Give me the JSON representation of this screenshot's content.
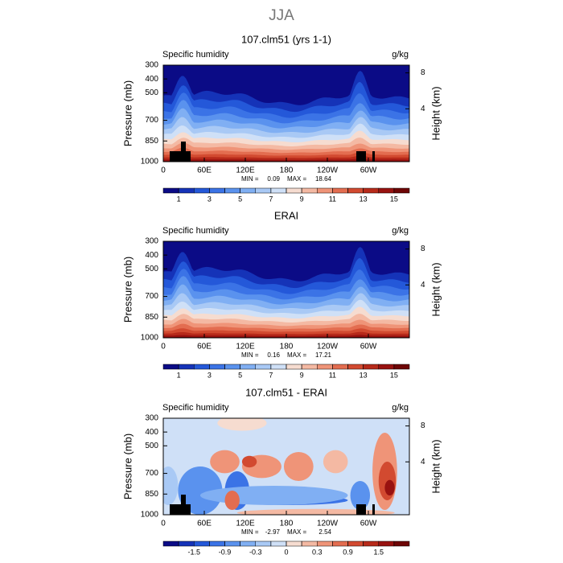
{
  "suptitle": "JJA",
  "chart_data": [
    {
      "type": "contour",
      "title": "107.clm51 (yrs 1-1)",
      "left_label": "Specific humidity",
      "right_label": "g/kg",
      "ylabel": "Pressure (mb)",
      "y2label": "Height (km)",
      "xlim": [
        0,
        360
      ],
      "xticks": [
        0,
        {
          "value": 60,
          "label": "60E"
        },
        {
          "value": 120,
          "label": "120E"
        },
        180,
        {
          "value": 240,
          "label": "120W"
        },
        {
          "value": 300,
          "label": "60W"
        }
      ],
      "ylim": [
        1000,
        300
      ],
      "yticks": [
        300,
        400,
        500,
        700,
        850,
        1000
      ],
      "y2_scale": "standard-atmosphere",
      "y2ticks": [
        8,
        4
      ],
      "min_label": "MIN =",
      "min": 0.09,
      "max_label": "MAX =",
      "max": 18.64,
      "levels": [
        1,
        2,
        3,
        4,
        5,
        6,
        7,
        8,
        9,
        10,
        11,
        12,
        13,
        14,
        15
      ],
      "colorbar_ticks": [
        1,
        3,
        5,
        7,
        9,
        11,
        13,
        15
      ],
      "colors": [
        "#0b0b86",
        "#1533b8",
        "#2458d9",
        "#3b73e6",
        "#5a92ee",
        "#80aff3",
        "#a9c9f5",
        "#cfe0f7",
        "#f6dcd0",
        "#f4b9a3",
        "#ef9478",
        "#e36d50",
        "#d24a30",
        "#b72a1a",
        "#981210",
        "#6e0606"
      ]
    },
    {
      "type": "contour",
      "title": "ERAI",
      "left_label": "Specific humidity",
      "right_label": "g/kg",
      "ylabel": "Pressure (mb)",
      "y2label": "Height (km)",
      "xlim": [
        0,
        360
      ],
      "xticks": [
        0,
        {
          "value": 60,
          "label": "60E"
        },
        {
          "value": 120,
          "label": "120E"
        },
        180,
        {
          "value": 240,
          "label": "120W"
        },
        {
          "value": 300,
          "label": "60W"
        }
      ],
      "ylim": [
        1000,
        300
      ],
      "yticks": [
        300,
        400,
        500,
        700,
        850,
        1000
      ],
      "y2_scale": "standard-atmosphere",
      "y2ticks": [
        8,
        4
      ],
      "min_label": "MIN =",
      "min": 0.16,
      "max_label": "MAX =",
      "max": 17.21,
      "levels": [
        1,
        2,
        3,
        4,
        5,
        6,
        7,
        8,
        9,
        10,
        11,
        12,
        13,
        14,
        15
      ],
      "colorbar_ticks": [
        1,
        3,
        5,
        7,
        9,
        11,
        13,
        15
      ],
      "colors": [
        "#0b0b86",
        "#1533b8",
        "#2458d9",
        "#3b73e6",
        "#5a92ee",
        "#80aff3",
        "#a9c9f5",
        "#cfe0f7",
        "#f6dcd0",
        "#f4b9a3",
        "#ef9478",
        "#e36d50",
        "#d24a30",
        "#b72a1a",
        "#981210",
        "#6e0606"
      ]
    },
    {
      "type": "contour",
      "title": "107.clm51 - ERAI",
      "left_label": "Specific humidity",
      "right_label": "g/kg",
      "ylabel": "Pressure (mb)",
      "y2label": "Height (km)",
      "xlim": [
        0,
        360
      ],
      "xticks": [
        0,
        {
          "value": 60,
          "label": "60E"
        },
        {
          "value": 120,
          "label": "120E"
        },
        180,
        {
          "value": 240,
          "label": "120W"
        },
        {
          "value": 300,
          "label": "60W"
        }
      ],
      "ylim": [
        1000,
        300
      ],
      "yticks": [
        300,
        400,
        500,
        700,
        850,
        1000
      ],
      "y2_scale": "standard-atmosphere",
      "y2ticks": [
        8,
        4
      ],
      "min_label": "MIN =",
      "min": -2.97,
      "max_label": "MAX =",
      "max": 2.54,
      "levels": [
        -1.8,
        -1.5,
        -1.2,
        -0.9,
        -0.6,
        -0.3,
        -0.1,
        0,
        0.1,
        0.3,
        0.6,
        0.9,
        1.2,
        1.5,
        1.8
      ],
      "colorbar_ticks": [
        -1.5,
        -0.9,
        -0.3,
        0,
        0.3,
        0.9,
        1.5
      ],
      "colors": [
        "#0b0b86",
        "#1533b8",
        "#2458d9",
        "#3b73e6",
        "#5a92ee",
        "#80aff3",
        "#a9c9f5",
        "#cfe0f7",
        "#f6dcd0",
        "#f4b9a3",
        "#ef9478",
        "#e36d50",
        "#d24a30",
        "#b72a1a",
        "#981210",
        "#6e0606"
      ]
    }
  ]
}
